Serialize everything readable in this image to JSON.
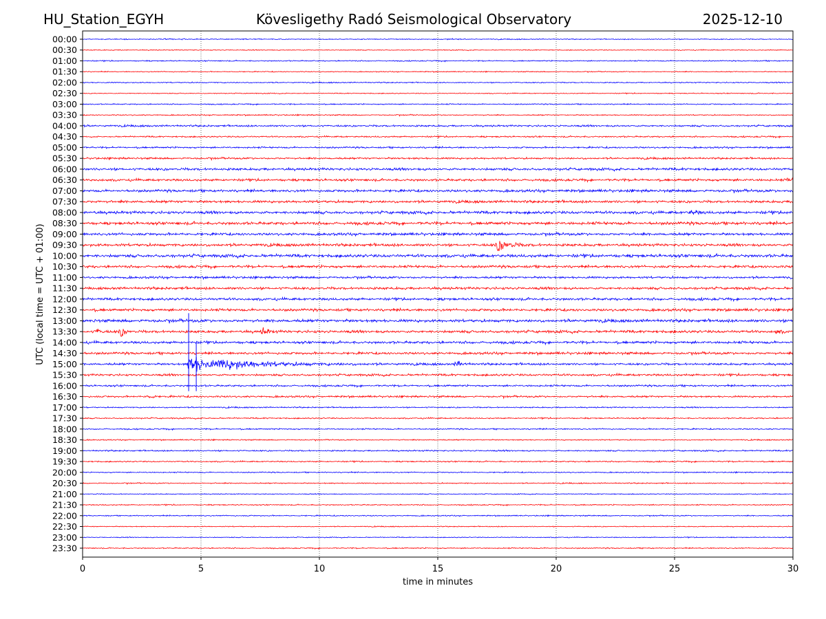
{
  "header": {
    "station": "HU_Station_EGYH",
    "observatory": "Kövesligethy Radó Seismological Observatory",
    "date": "2025-12-10"
  },
  "chart_data": {
    "type": "line",
    "title": "Kövesligethy Radó Seismological Observatory",
    "xlabel": "time in minutes",
    "ylabel": "UTC (local time = UTC + 01:00)",
    "xlim": [
      0,
      30
    ],
    "xticks": [
      "0",
      "5",
      "10",
      "15",
      "20",
      "25",
      "30"
    ],
    "grid": "vertical dotted at x ticks",
    "row_labels": [
      "00:00",
      "00:30",
      "01:00",
      "01:30",
      "02:00",
      "02:30",
      "03:00",
      "03:30",
      "04:00",
      "04:30",
      "05:00",
      "05:30",
      "06:00",
      "06:30",
      "07:00",
      "07:30",
      "08:00",
      "08:30",
      "09:00",
      "09:30",
      "10:00",
      "10:30",
      "11:00",
      "11:30",
      "12:00",
      "12:30",
      "13:00",
      "13:30",
      "14:00",
      "14:30",
      "15:00",
      "15:30",
      "16:00",
      "16:30",
      "17:00",
      "17:30",
      "18:00",
      "18:30",
      "19:00",
      "19:30",
      "20:00",
      "20:30",
      "21:00",
      "21:30",
      "22:00",
      "22:30",
      "23:00",
      "23:30"
    ],
    "row_colors": [
      "#0000ff",
      "#ff0000"
    ],
    "noise_level": [
      0.05,
      0.05,
      0.06,
      0.05,
      0.06,
      0.05,
      0.06,
      0.06,
      0.1,
      0.08,
      0.09,
      0.1,
      0.14,
      0.13,
      0.14,
      0.14,
      0.16,
      0.16,
      0.14,
      0.15,
      0.17,
      0.14,
      0.12,
      0.14,
      0.14,
      0.14,
      0.16,
      0.15,
      0.14,
      0.13,
      0.12,
      0.12,
      0.1,
      0.1,
      0.07,
      0.07,
      0.07,
      0.06,
      0.08,
      0.07,
      0.06,
      0.06,
      0.05,
      0.06,
      0.06,
      0.05,
      0.05,
      0.06
    ],
    "events": [
      {
        "row": "06:30",
        "minute": 29.8,
        "amplitude": 0.5,
        "duration": 0.3
      },
      {
        "row": "08:00",
        "minute": 25.7,
        "amplitude": 0.35,
        "duration": 0.5
      },
      {
        "row": "09:30",
        "minute": 17.5,
        "amplitude": 0.9,
        "duration": 1.0
      },
      {
        "row": "13:30",
        "minute": 0.6,
        "amplitude": 0.45,
        "duration": 0.3
      },
      {
        "row": "13:30",
        "minute": 1.6,
        "amplitude": 0.9,
        "duration": 0.3
      },
      {
        "row": "13:30",
        "minute": 7.6,
        "amplitude": 0.6,
        "duration": 0.4
      },
      {
        "row": "13:30",
        "minute": 29.3,
        "amplitude": 0.35,
        "duration": 0.3
      },
      {
        "row": "15:00",
        "minute": 4.5,
        "amplitude": 1.6,
        "duration": 1.5
      },
      {
        "row": "15:00",
        "minute": 5.8,
        "amplitude": 0.6,
        "duration": 4.5
      },
      {
        "row": "15:00",
        "minute": 15.8,
        "amplitude": 0.5,
        "duration": 0.4
      },
      {
        "row": "16:30",
        "minute": 2.8,
        "amplitude": 0.4,
        "duration": 0.3
      }
    ],
    "spikes": [
      {
        "row": "15:00",
        "minute": 4.48,
        "up_rows": 4.7,
        "down_rows": 2.5
      },
      {
        "row": "15:00",
        "minute": 4.8,
        "up_rows": 2.0,
        "down_rows": 2.5
      }
    ]
  }
}
